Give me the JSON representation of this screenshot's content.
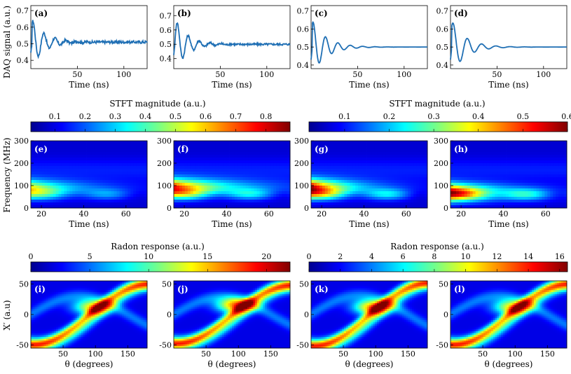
{
  "figure": {
    "colormap_name": "jet",
    "line_color": "#1f6fb4",
    "background_color": "#ffffff",
    "dark_color": "#0b0b4a"
  },
  "chart_data": [
    {
      "type": "line",
      "row": "time-domain",
      "ylabel": "DAQ signal (a.u.)",
      "xlabel": "Time (ns)",
      "xlim": [
        0,
        125
      ],
      "xticks": [
        50,
        100
      ],
      "ylim": [
        0.35,
        0.73
      ],
      "yticks": [
        0.4,
        0.5,
        0.6,
        0.7
      ],
      "baseline": 0.5,
      "panels": [
        {
          "label": "(a)",
          "offset": 0.51,
          "amp": 0.15,
          "decay": 14,
          "freq": 0.085,
          "phase": 1.3,
          "noise": 0.008,
          "ylim": [
            0.35,
            0.73
          ],
          "yticks": [
            0.4,
            0.5,
            0.6,
            0.7
          ]
        },
        {
          "label": "(b)",
          "offset": 0.5,
          "amp": 0.2,
          "decay": 13,
          "freq": 0.085,
          "phase": 2.1,
          "noise": 0.007,
          "ylim": [
            0.33,
            0.77
          ],
          "yticks": [
            0.4,
            0.5,
            0.6,
            0.7
          ]
        },
        {
          "label": "(c)",
          "offset": 0.5,
          "amp": 0.16,
          "decay": 15,
          "freq": 0.075,
          "phase": 1.1,
          "noise": 0.0,
          "ylim": [
            0.38,
            0.73
          ],
          "yticks": [
            0.4,
            0.5,
            0.6,
            0.7
          ]
        },
        {
          "label": "(d)",
          "offset": 0.5,
          "amp": 0.16,
          "decay": 15,
          "freq": 0.065,
          "phase": 1.2,
          "noise": 0.0,
          "ylim": [
            0.38,
            0.73
          ],
          "yticks": [
            0.4,
            0.5,
            0.6,
            0.7
          ]
        }
      ]
    },
    {
      "type": "heatmap",
      "row": "stft",
      "colorbar_groups": [
        {
          "title": "STFT magnitude (a.u.)",
          "ticks": [
            0.1,
            0.2,
            0.3,
            0.4,
            0.5,
            0.6,
            0.7,
            0.8
          ],
          "range": [
            0.02,
            0.88
          ]
        },
        {
          "title": "STFT magnitude (a.u.)",
          "ticks": [
            0.1,
            0.2,
            0.3,
            0.4,
            0.5,
            0.6
          ],
          "range": [
            0.02,
            0.6
          ]
        }
      ],
      "ylabel": "Frequency (MHz)",
      "xlabel": "Time (ns)",
      "xlim": [
        15,
        70
      ],
      "xticks": [
        20,
        40,
        60
      ],
      "ylim": [
        0,
        300
      ],
      "yticks": [
        0,
        100,
        200,
        300
      ],
      "panels": [
        {
          "label": "(e)",
          "peak_freq": 85,
          "peak_time": 15,
          "width_t": 22,
          "strength": 0.62
        },
        {
          "label": "(f)",
          "peak_freq": 90,
          "peak_time": 15,
          "width_t": 26,
          "strength": 0.88
        },
        {
          "label": "(g)",
          "peak_freq": 88,
          "peak_time": 15,
          "width_t": 18,
          "strength": 1.0
        },
        {
          "label": "(h)",
          "peak_freq": 70,
          "peak_time": 15,
          "width_t": 22,
          "strength": 0.9
        }
      ]
    },
    {
      "type": "heatmap",
      "row": "radon",
      "colorbar_groups": [
        {
          "title": "Radon response (a.u.)",
          "ticks": [
            0,
            5,
            10,
            15,
            20
          ],
          "range": [
            0,
            22
          ]
        },
        {
          "title": "Radon response (a.u.)",
          "ticks": [
            0,
            2,
            4,
            6,
            8,
            10,
            12,
            14,
            16
          ],
          "range": [
            0,
            16.5
          ]
        }
      ],
      "ylabel": "X′ (a.u)",
      "xlabel": "θ (degrees)",
      "xlim": [
        0,
        180
      ],
      "xticks": [
        50,
        100,
        150
      ],
      "ylim": [
        -55,
        55
      ],
      "yticks": [
        -50,
        0,
        50
      ],
      "panels": [
        {
          "label": "(i)",
          "crossing_theta": 95,
          "crossing_x": 12,
          "amp": 50,
          "strength": 0.85
        },
        {
          "label": "(j)",
          "crossing_theta": 95,
          "crossing_x": 15,
          "amp": 48,
          "strength": 1.0
        },
        {
          "label": "(k)",
          "crossing_theta": 95,
          "crossing_x": 12,
          "amp": 52,
          "strength": 1.0
        },
        {
          "label": "(l)",
          "crossing_theta": 95,
          "crossing_x": 12,
          "amp": 50,
          "strength": 0.85
        }
      ]
    }
  ]
}
